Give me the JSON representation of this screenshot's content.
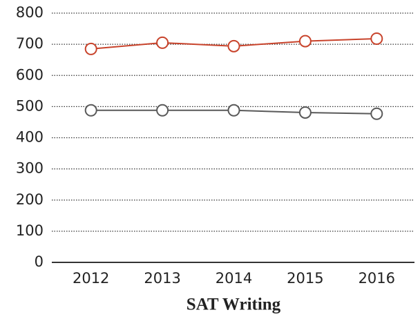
{
  "chart_data": {
    "type": "line",
    "title": "SAT Writing",
    "categories": [
      "2012",
      "2013",
      "2014",
      "2015",
      "2016"
    ],
    "series": [
      {
        "color": "#c8432b",
        "values": [
          685,
          705,
          694,
          710,
          718
        ]
      },
      {
        "color": "#595959",
        "values": [
          488,
          488,
          488,
          481,
          477
        ]
      }
    ],
    "ylim": [
      0,
      800
    ],
    "yticks": [
      0,
      100,
      200,
      300,
      400,
      500,
      600,
      700,
      800
    ],
    "grid": true
  }
}
